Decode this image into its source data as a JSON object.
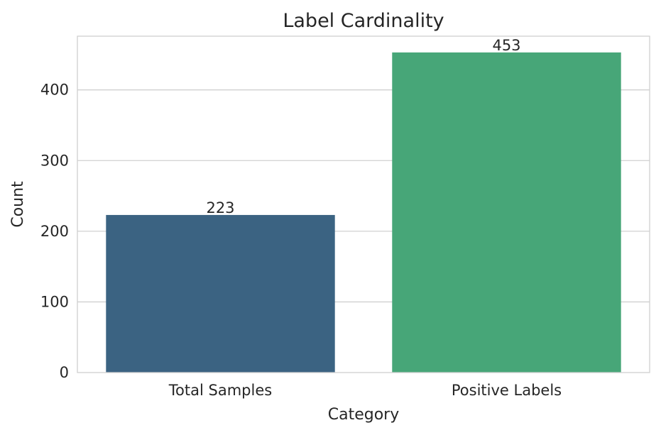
{
  "chart_data": {
    "type": "bar",
    "title": "Label Cardinality",
    "xlabel": "Category",
    "ylabel": "Count",
    "categories": [
      "Total Samples",
      "Positive Labels"
    ],
    "values": [
      223,
      453
    ],
    "data_labels": [
      "223",
      "453"
    ],
    "ylim": [
      0,
      476
    ],
    "yticks": [
      0,
      100,
      200,
      300,
      400
    ],
    "ytick_labels": [
      "0",
      "100",
      "200",
      "300",
      "400"
    ],
    "colors": [
      "#3b6382",
      "#47a678"
    ],
    "grid": "horizontal",
    "legend": "none",
    "style": {
      "axes_edge_color": "#d0d0d0",
      "grid_color": "#d0d0d0",
      "text_color": "#262626",
      "background": "#ffffff"
    }
  }
}
